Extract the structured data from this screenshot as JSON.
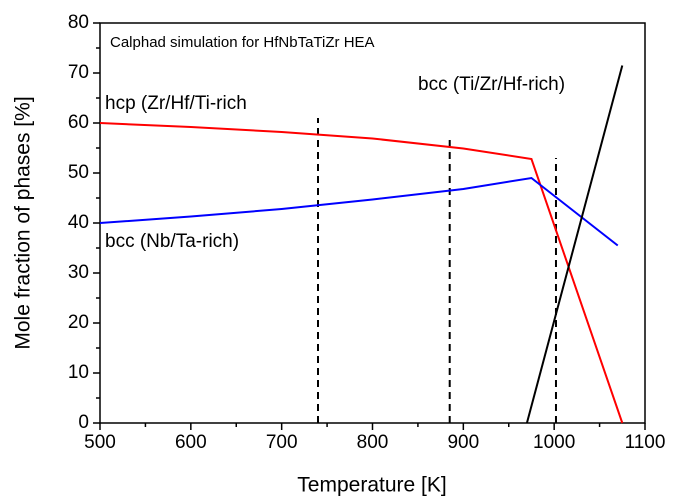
{
  "chart_data": {
    "type": "line",
    "annotation": "Calphad simulation for HfNbTaTiZr HEA",
    "x_label": "Temperature [K]",
    "y_label": "Mole fraction of phases [%]",
    "xlim": [
      500,
      1100
    ],
    "xticks": [
      500,
      600,
      700,
      800,
      900,
      1000,
      1100
    ],
    "ylim": [
      0,
      80
    ],
    "yticks": [
      0,
      10,
      20,
      30,
      40,
      50,
      60,
      70,
      80
    ],
    "series": [
      {
        "name": "hcp (Zr/Hf/Ti-rich",
        "color": "#ff0000",
        "x": [
          500,
          600,
          700,
          800,
          900,
          975,
          1075
        ],
        "values": [
          60,
          59.2,
          58.2,
          56.9,
          54.9,
          52.8,
          0
        ]
      },
      {
        "name": "bcc (Nb/Ta-rich)",
        "color": "#0000ff",
        "x": [
          500,
          600,
          700,
          800,
          900,
          975,
          1070
        ],
        "values": [
          40,
          41.3,
          42.8,
          44.7,
          46.8,
          49,
          35.5
        ]
      },
      {
        "name": "bcc (Ti/Zr/Hf-rich)",
        "color": "#000000",
        "x": [
          970,
          1075
        ],
        "values": [
          0,
          71.5
        ]
      }
    ],
    "vlines": [
      {
        "x": 740,
        "ymax": 61
      },
      {
        "x": 885,
        "ymax": 57
      },
      {
        "x": 1002,
        "ymax": 53
      }
    ]
  }
}
